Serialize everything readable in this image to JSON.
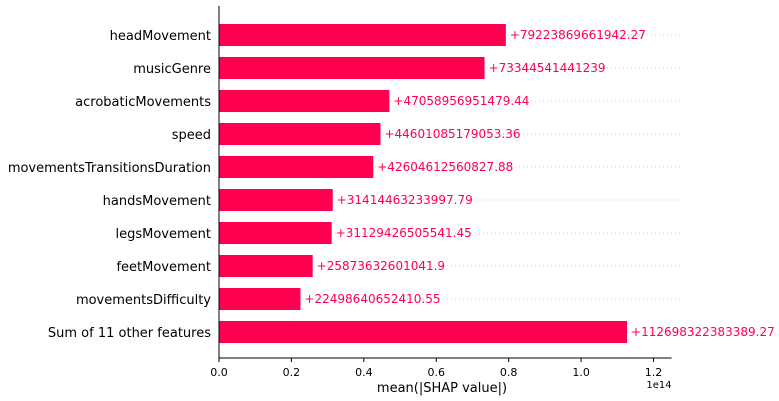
{
  "chart_data": {
    "type": "bar",
    "orientation": "horizontal",
    "xlabel": "mean(|SHAP value|)",
    "x_offset_label": "1e14",
    "xlim": [
      0,
      125000000000000
    ],
    "xticks": [
      0,
      20000000000000,
      40000000000000,
      60000000000000,
      80000000000000,
      100000000000000,
      120000000000000
    ],
    "xtick_labels": [
      "0.0",
      "0.2",
      "0.4",
      "0.6",
      "0.8",
      "1.0",
      "1.2"
    ],
    "bar_color": "#ff0051",
    "gridlines": "dotted row guides",
    "categories": [
      "headMovement",
      "musicGenre",
      "acrobaticMovements",
      "speed",
      "movementsTransitionsDuration",
      "handsMovement",
      "legsMovement",
      "feetMovement",
      "movementsDifficulty",
      "Sum of 11 other features"
    ],
    "values": [
      79223869661942.27,
      73344541441239,
      47058956951479.44,
      44601085179053.36,
      42604612560827.88,
      31414463233997.79,
      31129426505541.45,
      25873632601041.9,
      22498640652410.55,
      112698322383389.27
    ],
    "value_labels": [
      "+79223869661942.27",
      "+73344541441239",
      "+47058956951479.44",
      "+44601085179053.36",
      "+42604612560827.88",
      "+31414463233997.79",
      "+31129426505541.45",
      "+25873632601041.9",
      "+22498640652410.55",
      "+112698322383389.27"
    ]
  }
}
